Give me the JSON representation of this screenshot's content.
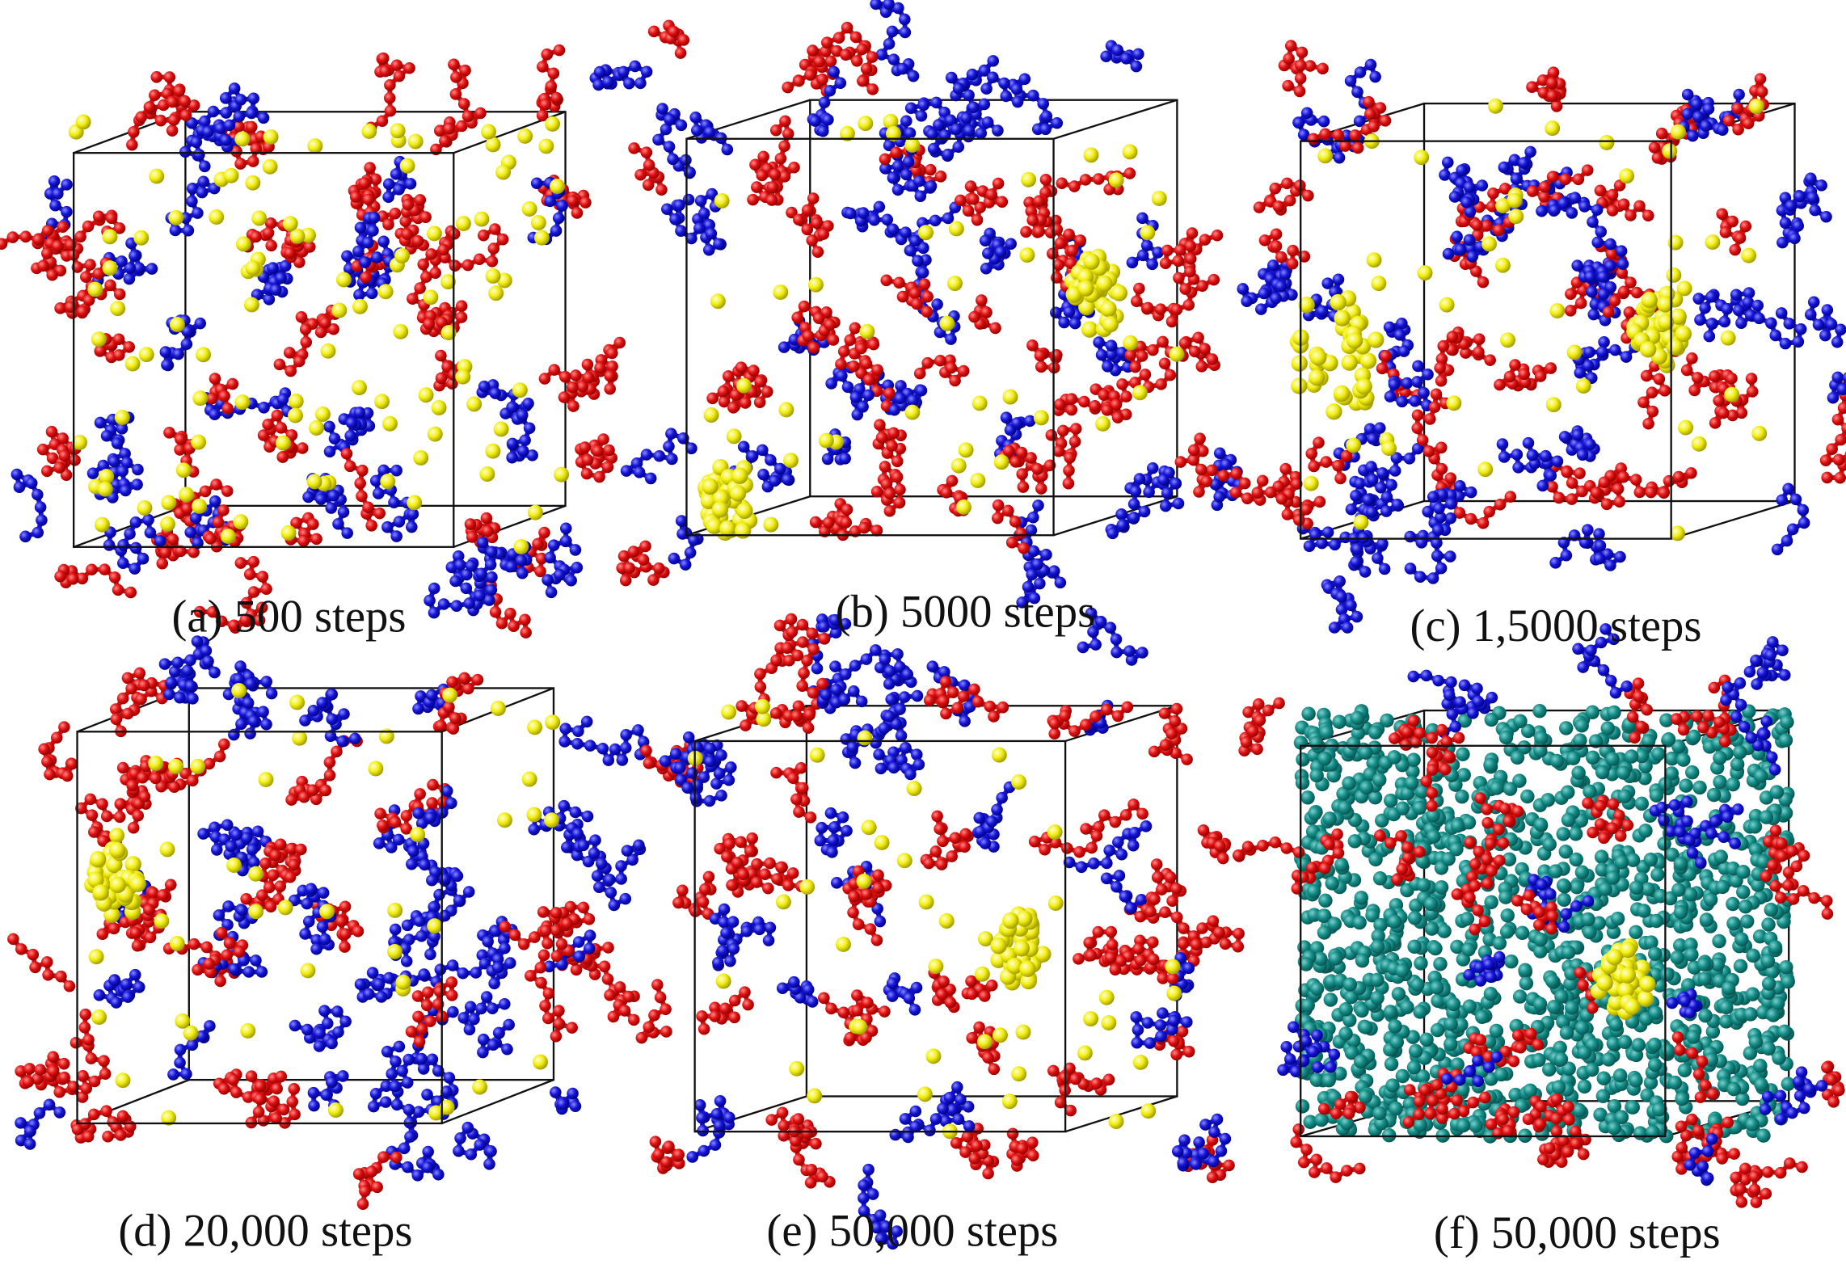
{
  "panels": [
    {
      "caption": "(a) 500 steps"
    },
    {
      "caption": "(b)  5000 steps"
    },
    {
      "caption": "(c) 1,5000 steps"
    },
    {
      "caption": "(d) 20,000 steps"
    },
    {
      "caption": "(e) 50,000 steps"
    },
    {
      "caption": "(f) 50,000 steps"
    }
  ]
}
